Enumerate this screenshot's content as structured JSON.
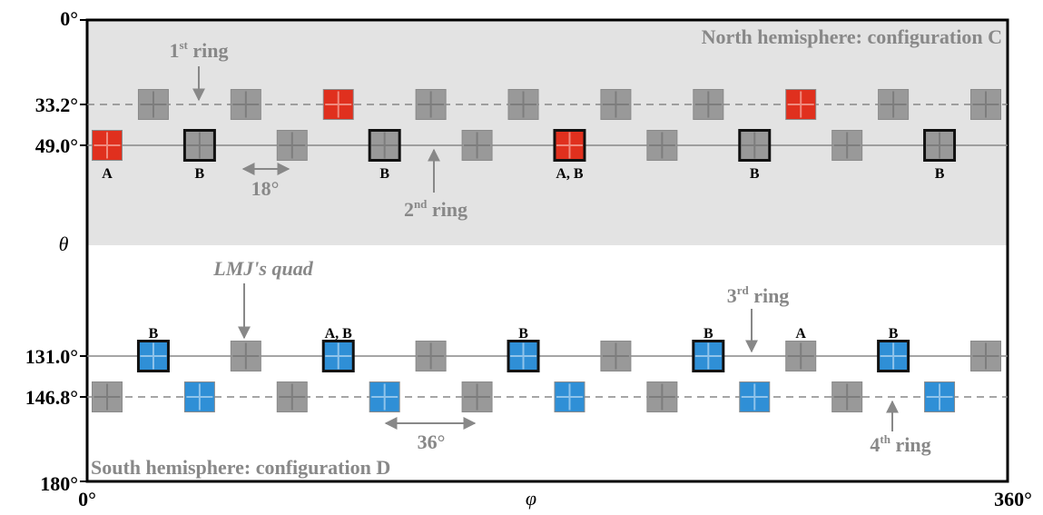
{
  "axes": {
    "theta_symbol": "θ",
    "phi_symbol": "φ",
    "theta_ticks": [
      "0°",
      "33.2°",
      "49.0°",
      "131.0°",
      "146.8°",
      "180°"
    ],
    "phi_ticks": [
      "0°",
      "360°"
    ]
  },
  "hemispheres": {
    "north": "North hemisphere: configuration C",
    "south": "South hemisphere: configuration D"
  },
  "rings": {
    "first": {
      "base": "1",
      "sup": "st",
      "word": "ring"
    },
    "second": {
      "base": "2",
      "sup": "nd",
      "word": "ring"
    },
    "third": {
      "base": "3",
      "sup": "rd",
      "word": "ring"
    },
    "fourth": {
      "base": "4",
      "sup": "th",
      "word": "ring"
    }
  },
  "annotations": {
    "quad_label": "LMJ's quad",
    "spacing_north": "18°",
    "spacing_south": "36°"
  },
  "colors": {
    "north_bg": "#e3e3e3",
    "quad_gray": "#999999",
    "quad_red": "#e0301e",
    "quad_blue": "#2f8fd6",
    "line": "#888888",
    "label_gray": "#888888"
  },
  "chart_data": {
    "type": "scatter",
    "xlabel": "φ",
    "ylabel": "θ",
    "xlim": [
      0,
      360
    ],
    "ylim": [
      0,
      180
    ],
    "rings": [
      {
        "theta": 33.2,
        "line": "dashed",
        "phi": [
          18,
          54,
          90,
          126,
          162,
          198,
          234,
          270,
          306,
          342
        ],
        "colors": [
          "gray",
          "gray",
          "red",
          "gray",
          "gray",
          "gray",
          "gray",
          "red",
          "gray",
          "gray"
        ],
        "bold": [
          false,
          false,
          false,
          false,
          false,
          false,
          false,
          false,
          false,
          false
        ],
        "labels": [
          "",
          "",
          "",
          "",
          "",
          "",
          "",
          "",
          "",
          ""
        ]
      },
      {
        "theta": 49.0,
        "line": "solid",
        "phi": [
          0,
          36,
          72,
          108,
          144,
          180,
          216,
          252,
          288,
          324
        ],
        "colors": [
          "red",
          "gray",
          "gray",
          "gray",
          "gray",
          "red",
          "gray",
          "gray",
          "gray",
          "gray"
        ],
        "bold": [
          false,
          true,
          false,
          true,
          false,
          true,
          false,
          true,
          false,
          true
        ],
        "labels": [
          "A",
          "B",
          "",
          "B",
          "",
          "A, B",
          "",
          "B",
          "",
          "B"
        ]
      },
      {
        "theta": 131.0,
        "line": "solid",
        "phi": [
          18,
          54,
          90,
          126,
          162,
          198,
          234,
          270,
          306,
          342
        ],
        "colors": [
          "blue",
          "gray",
          "blue",
          "gray",
          "blue",
          "gray",
          "blue",
          "gray",
          "blue",
          "gray"
        ],
        "bold": [
          true,
          false,
          true,
          false,
          true,
          false,
          true,
          false,
          true,
          false
        ],
        "labels": [
          "B",
          "",
          "A, B",
          "",
          "B",
          "",
          "B",
          "A",
          "B",
          ""
        ]
      },
      {
        "theta": 146.8,
        "line": "dashed",
        "phi": [
          0,
          36,
          72,
          108,
          144,
          180,
          216,
          252,
          288,
          324
        ],
        "colors": [
          "gray",
          "blue",
          "gray",
          "blue",
          "gray",
          "blue",
          "gray",
          "blue",
          "gray",
          "blue"
        ],
        "bold": [
          false,
          false,
          false,
          false,
          false,
          false,
          false,
          false,
          false,
          false
        ],
        "labels": [
          "",
          "",
          "",
          "",
          "",
          "",
          "",
          "",
          "",
          ""
        ]
      }
    ]
  }
}
